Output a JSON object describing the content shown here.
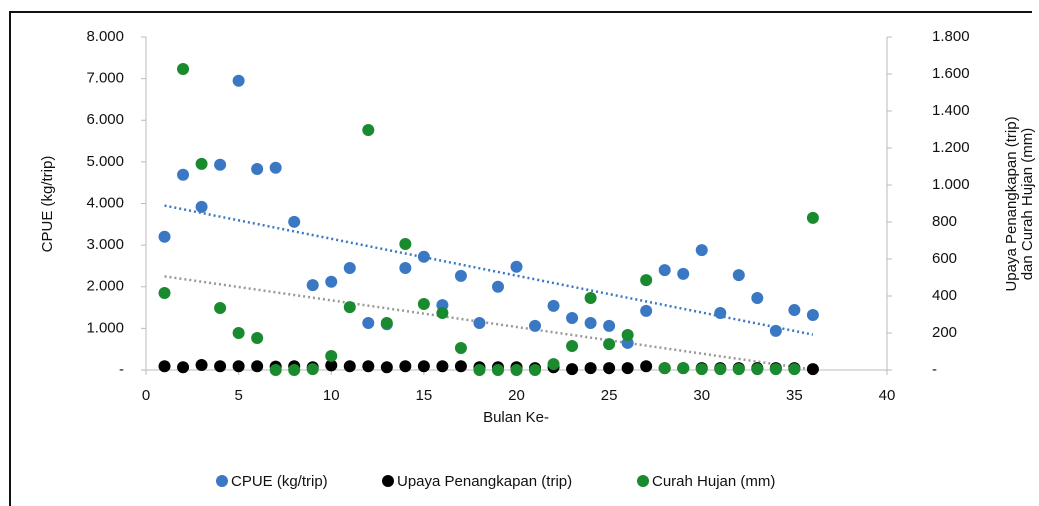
{
  "chart_data": {
    "type": "scatter",
    "xlabel": "Bulan Ke-",
    "ylabel": "CPUE (kg/trip)",
    "y2label": [
      "Upaya Penangkapan (trip)",
      "dan Curah Hujan (mm)"
    ],
    "x": [
      1,
      2,
      3,
      4,
      5,
      6,
      7,
      8,
      9,
      10,
      11,
      12,
      13,
      14,
      15,
      16,
      17,
      18,
      19,
      20,
      21,
      22,
      23,
      24,
      25,
      26,
      27,
      28,
      29,
      30,
      31,
      32,
      33,
      34,
      35,
      36
    ],
    "series": [
      {
        "name": "CPUE (kg/trip)",
        "color": "#3a78c3",
        "axis": "y",
        "values": [
          3200,
          4690,
          3920,
          4930,
          6950,
          4830,
          4860,
          3560,
          2040,
          2120,
          2450,
          1130,
          1100,
          2450,
          2720,
          1560,
          2260,
          1130,
          2000,
          2480,
          1060,
          1540,
          1250,
          1130,
          1060,
          650,
          1420,
          2400,
          2310,
          2880,
          1370,
          2280,
          1730,
          940,
          1440,
          1320
        ]
      },
      {
        "name": "Upaya Penangkapan (trip)",
        "color": "#000000",
        "axis": "y2",
        "values": [
          20,
          15,
          27,
          20,
          20,
          20,
          18,
          20,
          15,
          25,
          20,
          20,
          15,
          20,
          20,
          20,
          20,
          15,
          15,
          15,
          10,
          15,
          5,
          10,
          10,
          10,
          20,
          10,
          10,
          10,
          10,
          10,
          10,
          10,
          10,
          5
        ]
      },
      {
        "name": "Curah Hujan (mm)",
        "color": "#1a8a2e",
        "axis": "y2",
        "values": [
          416,
          1627,
          1114,
          335,
          200,
          173,
          0,
          0,
          5,
          76,
          340,
          1297,
          254,
          681,
          357,
          308,
          119,
          0,
          0,
          0,
          0,
          32,
          130,
          389,
          140,
          189,
          486,
          10,
          10,
          5,
          5,
          5,
          5,
          5,
          5,
          822
        ]
      }
    ],
    "trendlines": [
      {
        "color": "#3a78c3",
        "x": [
          1,
          36
        ],
        "values": [
          3950,
          850
        ]
      },
      {
        "color": "#999999",
        "x": [
          1,
          36
        ],
        "values": [
          2250,
          10
        ]
      }
    ],
    "xlim": [
      0,
      40
    ],
    "xticks": [
      0,
      5,
      10,
      15,
      20,
      25,
      30,
      35,
      40
    ],
    "ylim": [
      0,
      8000
    ],
    "yticks": [
      {
        "value": 0,
        "label": "-"
      },
      {
        "value": 1000,
        "label": "1.000"
      },
      {
        "value": 2000,
        "label": "2.000"
      },
      {
        "value": 3000,
        "label": "3.000"
      },
      {
        "value": 4000,
        "label": "4.000"
      },
      {
        "value": 5000,
        "label": "5.000"
      },
      {
        "value": 6000,
        "label": "6.000"
      },
      {
        "value": 7000,
        "label": "7.000"
      },
      {
        "value": 8000,
        "label": "8.000"
      }
    ],
    "y2lim": [
      0,
      1800
    ],
    "y2ticks": [
      {
        "value": 0,
        "label": "-"
      },
      200,
      400,
      600,
      800,
      {
        "value": 1000,
        "label": "1.000"
      },
      {
        "value": 1200,
        "label": "1.200"
      },
      {
        "value": 1400,
        "label": "1.400"
      },
      {
        "value": 1600,
        "label": "1.600"
      },
      {
        "value": 1800,
        "label": "1.800"
      }
    ]
  }
}
